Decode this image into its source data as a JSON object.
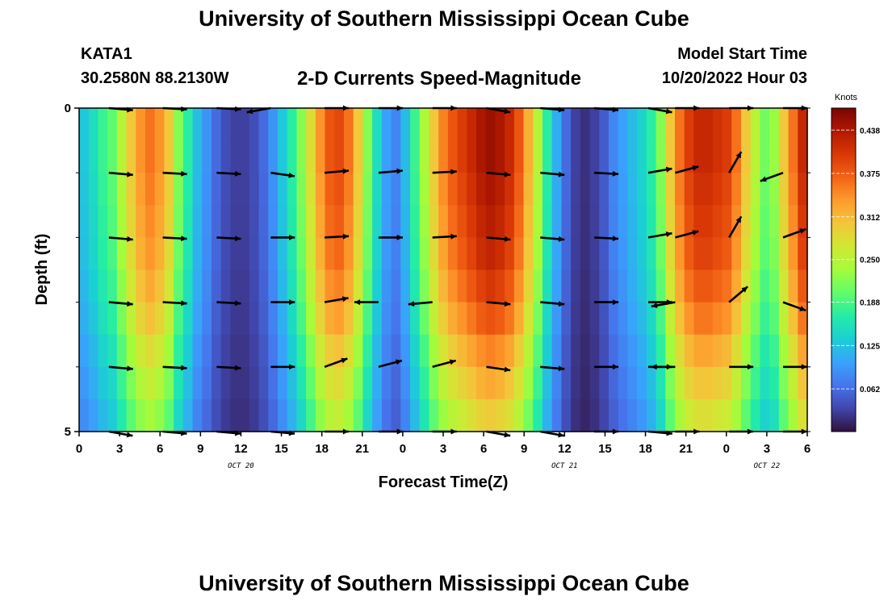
{
  "header": {
    "title": "University of Southern Mississippi Ocean Cube",
    "station": "KATA1",
    "coordinates": "30.2580N  88.2130W",
    "chart_title": "2-D Currents Speed-Magnitude",
    "model_start_label": "Model Start Time",
    "model_start_value": "10/20/2022 Hour 03"
  },
  "footer": {
    "title": "University of Southern Mississippi Ocean Cube"
  },
  "chart_data": {
    "type": "heatmap",
    "title": "2-D Currents Speed-Magnitude",
    "xlabel": "Forecast Time(Z)",
    "ylabel": "Depth (ft)",
    "x_hours": [
      0,
      3,
      6,
      9,
      12,
      15,
      18,
      21,
      24,
      27,
      30,
      33,
      36,
      39,
      42,
      45,
      48,
      51,
      54
    ],
    "x_ticks": [
      "0",
      "3",
      "6",
      "9",
      "12",
      "15",
      "18",
      "21",
      "0",
      "3",
      "6",
      "9",
      "12",
      "15",
      "18",
      "21",
      "0",
      "3",
      "6"
    ],
    "date_labels": [
      {
        "hour": 12,
        "text": "OCT 20"
      },
      {
        "hour": 36,
        "text": "OCT 21"
      },
      {
        "hour": 51,
        "text": "OCT 22"
      }
    ],
    "ylim": [
      0,
      5
    ],
    "y_ticks": [
      "0",
      "5"
    ],
    "speed_profile_knots": [
      0.13,
      0.15,
      0.18,
      0.2,
      0.25,
      0.3,
      0.34,
      0.36,
      0.34,
      0.3,
      0.22,
      0.17,
      0.12,
      0.09,
      0.06,
      0.04,
      0.03,
      0.03,
      0.04,
      0.06,
      0.09,
      0.13,
      0.17,
      0.22,
      0.28,
      0.34,
      0.38,
      0.39,
      0.36,
      0.3,
      0.22,
      0.15,
      0.1,
      0.08,
      0.12,
      0.18,
      0.24,
      0.3,
      0.35,
      0.38,
      0.4,
      0.42,
      0.44,
      0.45,
      0.44,
      0.42,
      0.38,
      0.32,
      0.25,
      0.17,
      0.11,
      0.06,
      0.03,
      0.02,
      0.03,
      0.05,
      0.08,
      0.1,
      0.12,
      0.14,
      0.17,
      0.22,
      0.3,
      0.36,
      0.4,
      0.42,
      0.42,
      0.41,
      0.4,
      0.36,
      0.3,
      0.25,
      0.21,
      0.23,
      0.3,
      0.36,
      0.42
    ],
    "depth_factor": [
      1.0,
      1.0,
      0.98,
      0.96,
      0.94,
      0.9,
      0.85,
      0.78,
      0.72,
      0.66
    ],
    "arrow_rows": [
      0,
      1,
      2,
      3,
      4,
      5
    ],
    "arrow_hours": [
      4,
      8,
      12,
      16,
      20,
      24,
      28,
      32,
      36,
      40,
      44,
      46,
      50,
      54
    ],
    "arrow_angles_deg": [
      [
        5,
        3,
        3,
        170,
        0,
        0,
        0,
        10,
        5,
        5,
        10,
        0,
        0,
        0
      ],
      [
        5,
        3,
        3,
        8,
        -5,
        -5,
        -3,
        5,
        5,
        3,
        -10,
        -15,
        -60,
        160
      ],
      [
        5,
        3,
        3,
        0,
        -3,
        0,
        -3,
        5,
        5,
        3,
        -10,
        -15,
        -60,
        -20
      ],
      [
        5,
        3,
        3,
        0,
        -10,
        180,
        175,
        5,
        5,
        0,
        0,
        170,
        -40,
        20
      ],
      [
        5,
        3,
        3,
        0,
        -20,
        -15,
        -15,
        8,
        5,
        0,
        0,
        180,
        0,
        0
      ],
      [
        10,
        5,
        5,
        5,
        0,
        0,
        0,
        10,
        10,
        0,
        5,
        0,
        0,
        0
      ]
    ],
    "colorbar": {
      "label": "Knots",
      "min": 0.0,
      "max": 0.47,
      "ticks": [
        "0.438",
        "0.375",
        "0.312",
        "0.250",
        "0.188",
        "0.125",
        "0.062"
      ],
      "tick_values": [
        0.438,
        0.375,
        0.312,
        0.25,
        0.188,
        0.125,
        0.062
      ],
      "colors": [
        "#30123b",
        "#4145ab",
        "#4675ed",
        "#39a2fc",
        "#1bcfd4",
        "#24eca6",
        "#61fc6c",
        "#a4fc3b",
        "#d1e834",
        "#f3c63a",
        "#fe9b2d",
        "#f36315",
        "#d93806",
        "#b11901",
        "#7a0402"
      ]
    }
  }
}
